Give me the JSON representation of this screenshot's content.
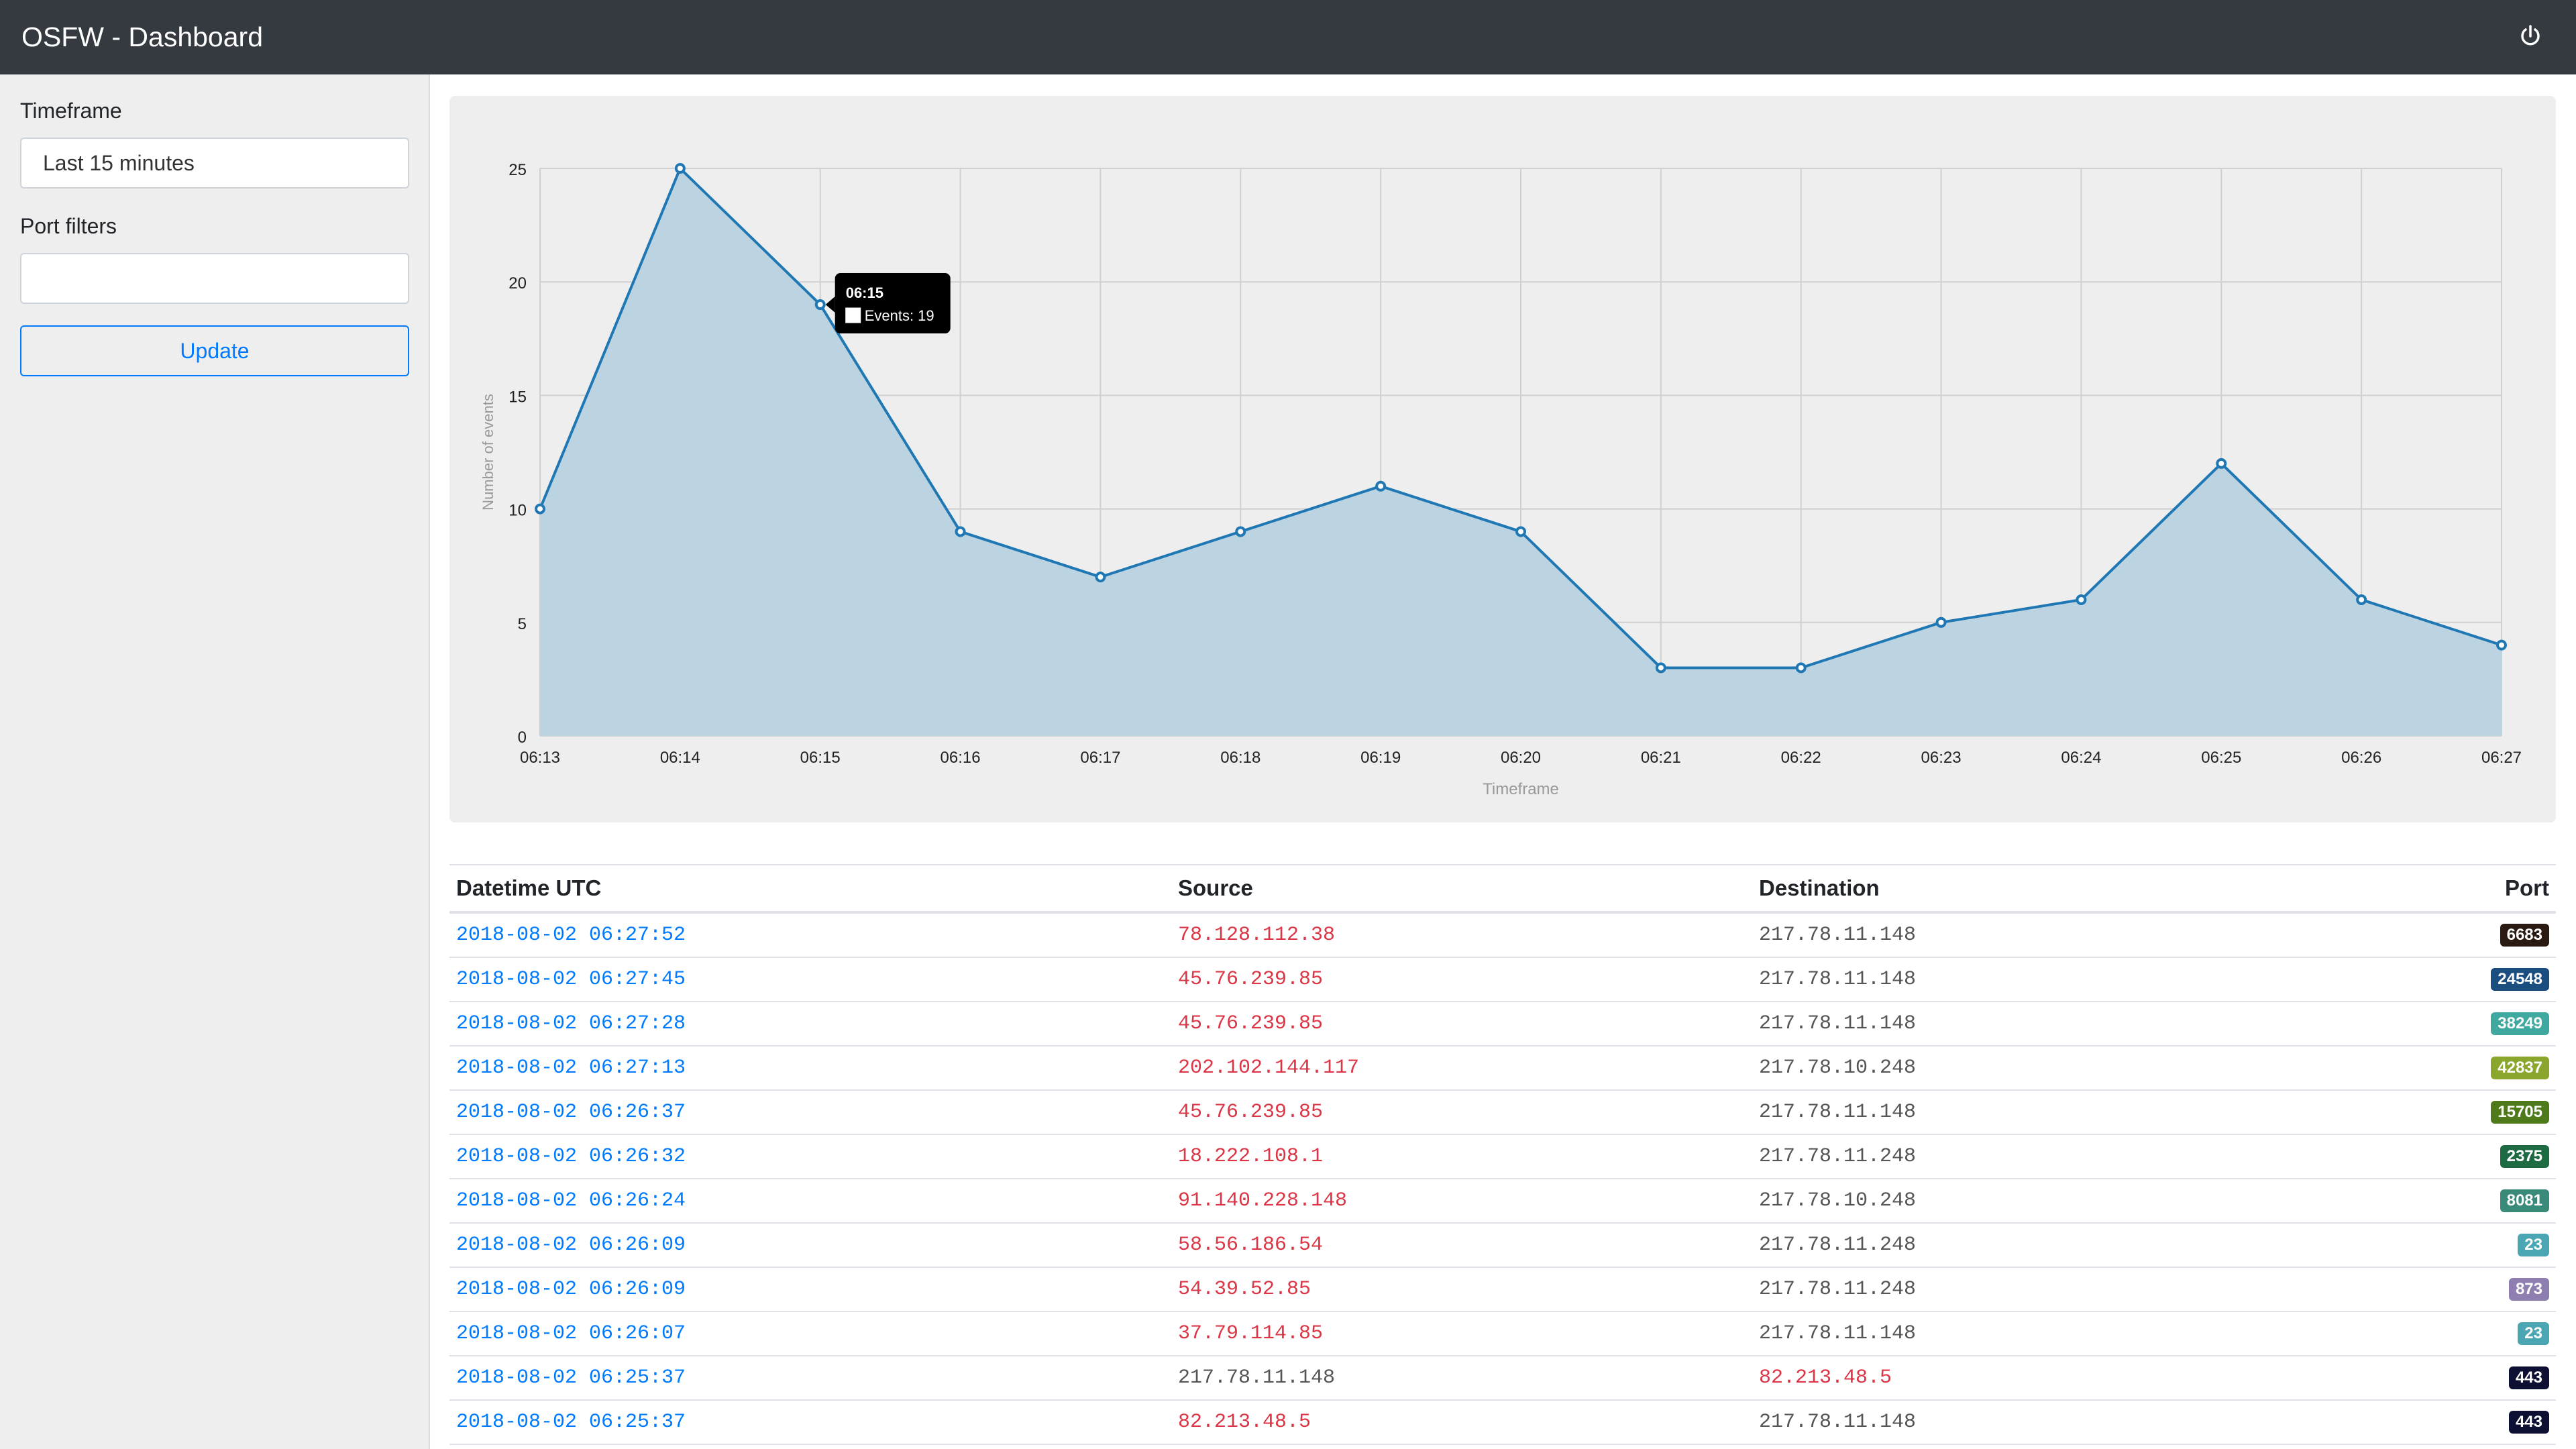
{
  "header": {
    "title": "OSFW - Dashboard",
    "power_icon": "power-icon"
  },
  "sidebar": {
    "timeframe_label": "Timeframe",
    "timeframe_value": "Last 15 minutes",
    "port_filters_label": "Port filters",
    "port_filters_value": "",
    "update_label": "Update"
  },
  "chart_data": {
    "type": "area",
    "categories": [
      "06:13",
      "06:14",
      "06:15",
      "06:16",
      "06:17",
      "06:18",
      "06:19",
      "06:20",
      "06:21",
      "06:22",
      "06:23",
      "06:24",
      "06:25",
      "06:26",
      "06:27"
    ],
    "series": [
      {
        "name": "Events",
        "values": [
          10,
          25,
          19,
          9,
          7,
          9,
          11,
          9,
          3,
          3,
          5,
          6,
          12,
          6,
          4
        ]
      }
    ],
    "xlabel": "Timeframe",
    "ylabel": "Number of events",
    "ylim": [
      0,
      25
    ],
    "yticks": [
      0,
      5,
      10,
      15,
      20,
      25
    ],
    "grid": true,
    "line_color": "#1f77b4",
    "fill_color": "#bcd4e2",
    "tooltip": {
      "title": "06:15",
      "label": "Events: 19",
      "index": 2
    }
  },
  "table": {
    "headers": [
      "Datetime UTC",
      "Source",
      "Destination",
      "Port"
    ],
    "rows": [
      {
        "datetime": "2018-08-02 06:27:52",
        "source": "78.128.112.38",
        "destination": "217.78.11.148",
        "port": "6683",
        "port_color": "#2b1a12",
        "src_red": true,
        "dst_red": false
      },
      {
        "datetime": "2018-08-02 06:27:45",
        "source": "45.76.239.85",
        "destination": "217.78.11.148",
        "port": "24548",
        "port_color": "#1a4e80",
        "src_red": true,
        "dst_red": false
      },
      {
        "datetime": "2018-08-02 06:27:28",
        "source": "45.76.239.85",
        "destination": "217.78.11.148",
        "port": "38249",
        "port_color": "#3fa9a0",
        "src_red": true,
        "dst_red": false
      },
      {
        "datetime": "2018-08-02 06:27:13",
        "source": "202.102.144.117",
        "destination": "217.78.10.248",
        "port": "42837",
        "port_color": "#8aa62c",
        "src_red": true,
        "dst_red": false
      },
      {
        "datetime": "2018-08-02 06:26:37",
        "source": "45.76.239.85",
        "destination": "217.78.11.148",
        "port": "15705",
        "port_color": "#4e7a19",
        "src_red": true,
        "dst_red": false
      },
      {
        "datetime": "2018-08-02 06:26:32",
        "source": "18.222.108.1",
        "destination": "217.78.11.248",
        "port": "2375",
        "port_color": "#1d6b43",
        "src_red": true,
        "dst_red": false
      },
      {
        "datetime": "2018-08-02 06:26:24",
        "source": "91.140.228.148",
        "destination": "217.78.10.248",
        "port": "8081",
        "port_color": "#3a8a7a",
        "src_red": true,
        "dst_red": false
      },
      {
        "datetime": "2018-08-02 06:26:09",
        "source": "58.56.186.54",
        "destination": "217.78.11.248",
        "port": "23",
        "port_color": "#4aa6b2",
        "src_red": true,
        "dst_red": false
      },
      {
        "datetime": "2018-08-02 06:26:09",
        "source": "54.39.52.85",
        "destination": "217.78.11.248",
        "port": "873",
        "port_color": "#8f7fb0",
        "src_red": true,
        "dst_red": false
      },
      {
        "datetime": "2018-08-02 06:26:07",
        "source": "37.79.114.85",
        "destination": "217.78.11.148",
        "port": "23",
        "port_color": "#4aa6b2",
        "src_red": true,
        "dst_red": false
      },
      {
        "datetime": "2018-08-02 06:25:37",
        "source": "217.78.11.148",
        "destination": "82.213.48.5",
        "port": "443",
        "port_color": "#0d0f33",
        "src_red": false,
        "dst_red": true
      },
      {
        "datetime": "2018-08-02 06:25:37",
        "source": "82.213.48.5",
        "destination": "217.78.11.148",
        "port": "443",
        "port_color": "#0d0f33",
        "src_red": true,
        "dst_red": false
      }
    ]
  }
}
